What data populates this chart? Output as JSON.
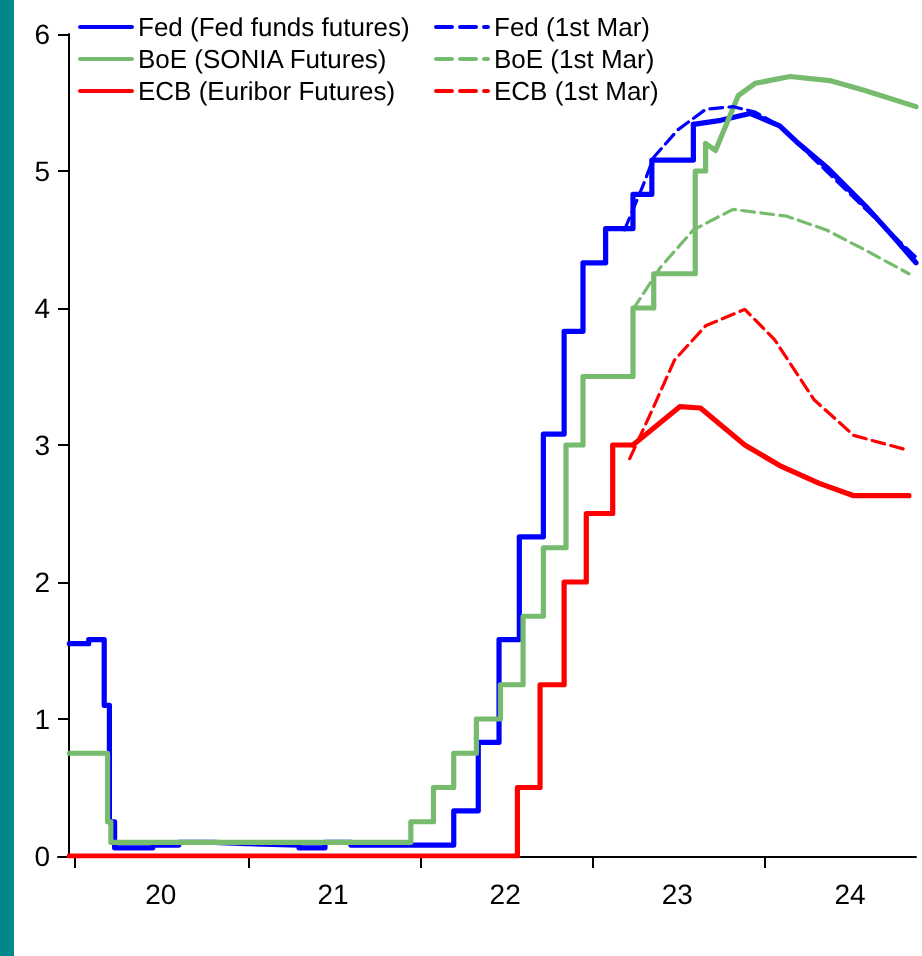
{
  "chart_data": {
    "type": "line",
    "legend": "top left",
    "grid": false,
    "marker": "none",
    "xlim": [
      "2019-11-26",
      "2024-11-18"
    ],
    "xticks": [
      {
        "value": "2020-01-01",
        "label": null
      },
      {
        "value": "2020-07-01",
        "label": "20"
      },
      {
        "value": "2021-01-01",
        "label": null
      },
      {
        "value": "2021-07-01",
        "label": "21"
      },
      {
        "value": "2022-01-01",
        "label": null
      },
      {
        "value": "2022-07-01",
        "label": "22"
      },
      {
        "value": "2023-01-01",
        "label": null
      },
      {
        "value": "2023-07-01",
        "label": "23"
      },
      {
        "value": "2024-01-01",
        "label": null
      },
      {
        "value": "2024-07-01",
        "label": "24"
      }
    ],
    "ylim": [
      0,
      6
    ],
    "yticks": [
      0,
      1,
      2,
      3,
      4,
      5,
      6
    ],
    "series": [
      {
        "name": "Fed (Fed funds futures)",
        "type": "step",
        "color": "#0000ff",
        "line_style": "solid",
        "x": [
          "2019-12-20",
          "2020-01-30",
          "2020-03-03",
          "2020-03-14",
          "2020-03-25",
          "2020-06-14",
          "2020-08-08",
          "2020-10-20",
          "2021-01-01",
          "2021-04-20",
          "2021-06-14",
          "2021-08-08",
          "2022-03-14",
          "2022-05-05",
          "2022-06-18",
          "2022-07-31",
          "2022-09-20",
          "2022-11-03",
          "2022-12-13",
          "2023-01-30",
          "2023-03-29",
          "2023-05-08",
          "2023-08-04"
        ],
        "values": [
          1.55,
          1.58,
          1.1,
          0.25,
          0.06,
          0.08,
          0.1,
          0.09,
          0.08,
          0.06,
          0.1,
          0.08,
          0.33,
          0.83,
          1.58,
          2.33,
          3.08,
          3.83,
          4.33,
          4.58,
          4.83,
          5.08,
          5.34
        ]
      },
      {
        "name": "Fed (1st Mar)",
        "color": "#0000ff",
        "line_style": "dashed",
        "x": [
          "2023-03-11",
          "2023-04-20",
          "2023-05-12",
          "2023-07-02",
          "2023-08-30",
          "2023-10-27",
          "2023-12-13",
          "2024-02-03",
          "2024-05-12",
          "2024-08-04",
          "2024-11-18"
        ],
        "values": [
          4.57,
          4.9,
          5.1,
          5.3,
          5.45,
          5.47,
          5.43,
          5.33,
          5.0,
          4.72,
          4.37
        ]
      },
      {
        "name": "BoE (SONIA Futures)",
        "type": "step",
        "color": "#77bb6e",
        "line_style": "solid",
        "x": [
          "2019-12-20",
          "2020-03-10",
          "2020-03-17",
          "2021-12-13",
          "2022-01-30",
          "2022-03-14",
          "2022-05-01",
          "2022-06-21",
          "2022-08-08",
          "2022-09-20",
          "2022-11-07",
          "2022-12-13",
          "2023-03-29",
          "2023-05-12",
          "2023-08-08",
          "2023-08-30"
        ],
        "values": [
          0.75,
          0.25,
          0.1,
          0.25,
          0.5,
          0.75,
          1.0,
          1.25,
          1.75,
          2.25,
          3.0,
          3.5,
          4.0,
          4.25,
          5.0,
          5.2
        ]
      },
      {
        "name": "BoE (1st Mar)",
        "color": "#77bb6e",
        "line_style": "dashed",
        "x": [
          "2023-03-29",
          "2023-05-27",
          "2023-08-04",
          "2023-10-27",
          "2024-02-18",
          "2024-05-12",
          "2024-08-04",
          "2024-11-03"
        ],
        "values": [
          3.99,
          4.3,
          4.57,
          4.72,
          4.67,
          4.57,
          4.42,
          4.25
        ]
      },
      {
        "name": "ECB (Euribor Futures)",
        "type": "step",
        "color": "#ff0000",
        "line_style": "solid",
        "x": [
          "2019-12-20",
          "2022-07-27",
          "2022-09-13",
          "2022-11-03",
          "2022-12-20",
          "2023-02-14",
          "2023-03-29"
        ],
        "values": [
          0,
          0.5,
          1.25,
          2.0,
          2.5,
          3.0,
          3.0
        ]
      },
      {
        "name": "ECB (1st Mar)",
        "color": "#ff0000",
        "line_style": "dashed",
        "x": [
          "2023-03-22",
          "2023-05-12",
          "2023-06-25",
          "2023-08-30",
          "2023-11-21",
          "2024-01-23",
          "2024-04-16",
          "2024-07-09",
          "2024-11-03"
        ],
        "values": [
          2.9,
          3.28,
          3.62,
          3.87,
          3.99,
          3.77,
          3.33,
          3.07,
          2.96
        ]
      },
      {
        "color": "#0000ff",
        "line_style": "solid",
        "x": [
          "2023-08-04",
          "2023-10-01",
          "2023-12-02",
          "2024-02-03",
          "2024-03-14",
          "2024-05-12",
          "2024-08-04",
          "2024-10-01",
          "2024-11-18"
        ],
        "values": [
          5.34,
          5.37,
          5.42,
          5.33,
          5.2,
          5.03,
          4.74,
          4.52,
          4.33
        ]
      },
      {
        "color": "#77bb6e",
        "line_style": "solid",
        "x": [
          "2023-08-30",
          "2023-09-20",
          "2023-11-07",
          "2023-12-13",
          "2024-02-25",
          "2024-05-19",
          "2024-07-31",
          "2024-11-18"
        ],
        "values": [
          5.2,
          5.15,
          5.55,
          5.64,
          5.69,
          5.66,
          5.59,
          5.47
        ]
      },
      {
        "color": "#ff0000",
        "line_style": "solid",
        "x": [
          "2023-03-29",
          "2023-07-06",
          "2023-08-19",
          "2023-11-21",
          "2024-02-03",
          "2024-04-27",
          "2024-07-09",
          "2024-11-03"
        ],
        "values": [
          3.0,
          3.28,
          3.27,
          3.0,
          2.85,
          2.72,
          2.63,
          2.63
        ]
      }
    ]
  }
}
